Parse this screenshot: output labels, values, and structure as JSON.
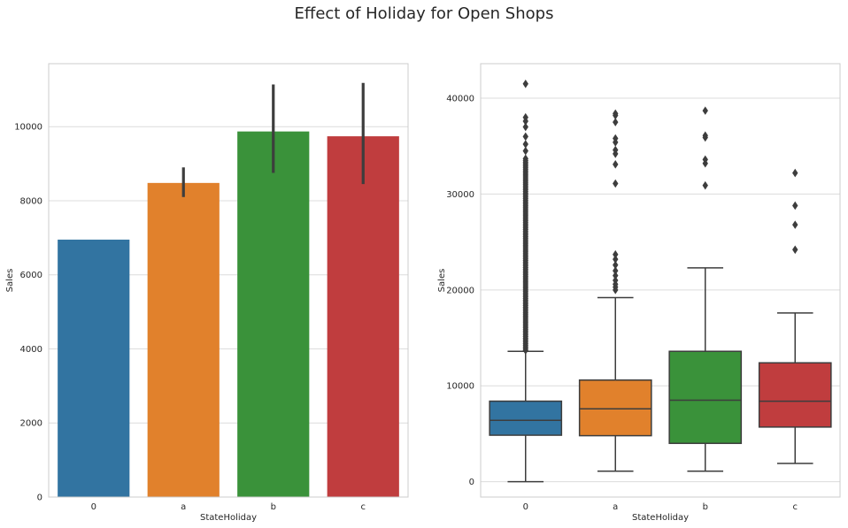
{
  "figure": {
    "title": "Effect of Holiday for Open Shops"
  },
  "colors": {
    "0": "#3274a1",
    "a": "#e1812c",
    "b": "#3a923a",
    "c": "#c03d3e",
    "grid": "#dcdcdc",
    "axes_edge": "#cccccc",
    "dark": "#3d3d3d"
  },
  "chart_data": [
    {
      "type": "bar",
      "title": "",
      "xlabel": "StateHoliday",
      "ylabel": "Sales",
      "categories": [
        "0",
        "a",
        "b",
        "c"
      ],
      "values": [
        6950,
        8480,
        9870,
        9740
      ],
      "error_bars": [
        [
          6950,
          6950
        ],
        [
          8100,
          8900
        ],
        [
          8750,
          11140
        ],
        [
          8450,
          11180
        ]
      ],
      "ylim": [
        0,
        11700
      ],
      "yticks": [
        0,
        2000,
        4000,
        6000,
        8000,
        10000
      ],
      "grid": true
    },
    {
      "type": "box",
      "title": "",
      "xlabel": "StateHoliday",
      "ylabel": "Sales",
      "categories": [
        "0",
        "a",
        "b",
        "c"
      ],
      "boxes": [
        {
          "category": "0",
          "whisker_low": 0,
          "q1": 4850,
          "median": 6400,
          "q3": 8400,
          "whisker_high": 13600,
          "outliers": [
            38000,
            37600,
            37000,
            36000,
            35200,
            34500,
            33700
          ]
        },
        {
          "category": "a",
          "whisker_low": 1100,
          "q1": 4800,
          "median": 7600,
          "q3": 10600,
          "whisker_high": 19200,
          "outliers": [
            20000,
            20300,
            20600,
            21000,
            21500,
            22000,
            22600,
            23200,
            23700,
            31100,
            33100,
            34200,
            34600,
            35400,
            35800,
            37500,
            38200,
            38400
          ]
        },
        {
          "category": "b",
          "whisker_low": 1100,
          "q1": 4000,
          "median": 8500,
          "q3": 13600,
          "whisker_high": 22300,
          "outliers": [
            30900,
            33200,
            33600,
            35900,
            36100,
            38700
          ]
        },
        {
          "category": "c",
          "whisker_low": 1900,
          "q1": 5700,
          "median": 8400,
          "q3": 12400,
          "whisker_high": 17600,
          "outliers": [
            24200,
            26800,
            28800,
            32200
          ]
        }
      ],
      "dense_outliers": {
        "category": "0",
        "from": 13700,
        "to": 33500
      },
      "extra_outliers": [
        {
          "category": "0",
          "value": 41500
        }
      ],
      "ylim": [
        -1600,
        43600
      ],
      "yticks": [
        0,
        10000,
        20000,
        30000,
        40000
      ],
      "grid": true
    }
  ]
}
